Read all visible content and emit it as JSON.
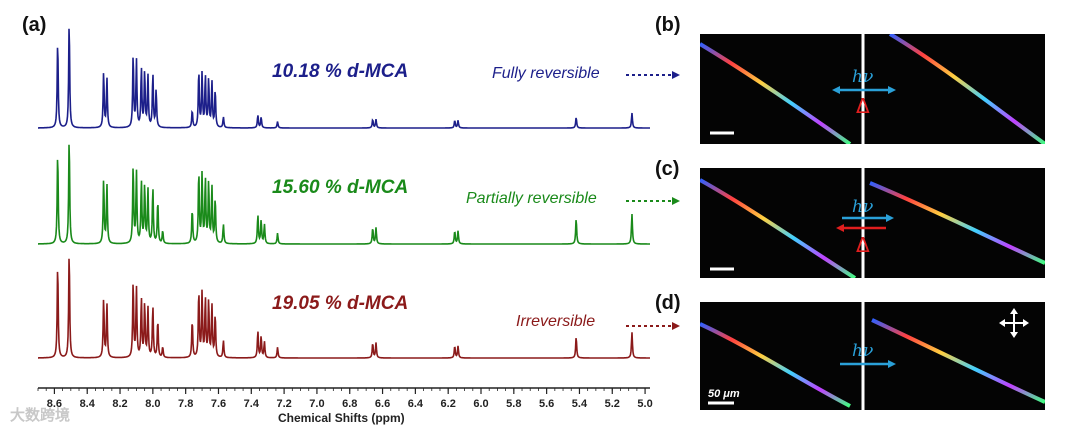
{
  "panels": {
    "a": "(a)",
    "b": "(b)",
    "c": "(c)",
    "d": "(d)"
  },
  "spectra": [
    {
      "concentration": "10.18 % d-MCA",
      "reversibility": "Fully reversible",
      "color": "#1c1f8a"
    },
    {
      "concentration": "15.60 % d-MCA",
      "reversibility": "Partially reversible",
      "color": "#1a8a1a"
    },
    {
      "concentration": "19.05 % d-MCA",
      "reversibility": "Irreversible",
      "color": "#8b1a1a"
    }
  ],
  "chart_data": {
    "type": "line",
    "xlabel": "Chemical Shifts (ppm)",
    "xlim": [
      8.7,
      4.97
    ],
    "x_reversed": true,
    "tick_labels": [
      "8.6",
      "8.4",
      "8.2",
      "8.0",
      "7.8",
      "7.6",
      "7.4",
      "7.2",
      "7.0",
      "6.8",
      "6.6",
      "6.4",
      "6.2",
      "6.0",
      "5.8",
      "5.6",
      "5.4",
      "5.2",
      "5.0"
    ],
    "ticks": [
      8.6,
      8.4,
      8.2,
      8.0,
      7.8,
      7.6,
      7.4,
      7.2,
      7.0,
      6.8,
      6.6,
      6.4,
      6.2,
      6.0,
      5.8,
      5.6,
      5.4,
      5.2,
      5.0
    ],
    "series": [
      {
        "name": "10.18 % d-MCA",
        "peaks": [
          [
            8.58,
            0.82
          ],
          [
            8.51,
            1.0
          ],
          [
            8.3,
            0.52
          ],
          [
            8.28,
            0.46
          ],
          [
            8.12,
            0.68
          ],
          [
            8.1,
            0.62
          ],
          [
            8.07,
            0.55
          ],
          [
            8.05,
            0.52
          ],
          [
            8.03,
            0.48
          ],
          [
            8.0,
            0.5
          ],
          [
            7.98,
            0.35
          ],
          [
            7.76,
            0.16
          ],
          [
            7.72,
            0.53
          ],
          [
            7.7,
            0.5
          ],
          [
            7.68,
            0.48
          ],
          [
            7.66,
            0.45
          ],
          [
            7.64,
            0.42
          ],
          [
            7.62,
            0.35
          ],
          [
            7.57,
            0.1
          ],
          [
            7.36,
            0.12
          ],
          [
            7.34,
            0.1
          ],
          [
            7.24,
            0.06
          ],
          [
            6.66,
            0.08
          ],
          [
            6.64,
            0.08
          ],
          [
            6.16,
            0.07
          ],
          [
            6.14,
            0.07
          ],
          [
            5.42,
            0.1
          ],
          [
            5.08,
            0.14
          ]
        ]
      },
      {
        "name": "15.60 % d-MCA",
        "peaks": [
          [
            8.58,
            0.86
          ],
          [
            8.51,
            1.0
          ],
          [
            8.3,
            0.6
          ],
          [
            8.28,
            0.55
          ],
          [
            8.12,
            0.73
          ],
          [
            8.1,
            0.66
          ],
          [
            8.07,
            0.58
          ],
          [
            8.05,
            0.54
          ],
          [
            8.03,
            0.5
          ],
          [
            8.0,
            0.52
          ],
          [
            7.97,
            0.4
          ],
          [
            7.94,
            0.12
          ],
          [
            7.76,
            0.32
          ],
          [
            7.72,
            0.67
          ],
          [
            7.7,
            0.64
          ],
          [
            7.68,
            0.6
          ],
          [
            7.66,
            0.57
          ],
          [
            7.64,
            0.52
          ],
          [
            7.62,
            0.42
          ],
          [
            7.57,
            0.18
          ],
          [
            7.36,
            0.27
          ],
          [
            7.34,
            0.22
          ],
          [
            7.32,
            0.18
          ],
          [
            7.24,
            0.1
          ],
          [
            6.66,
            0.15
          ],
          [
            6.64,
            0.15
          ],
          [
            6.16,
            0.12
          ],
          [
            6.14,
            0.12
          ],
          [
            5.42,
            0.24
          ],
          [
            5.08,
            0.28
          ]
        ]
      },
      {
        "name": "19.05 % d-MCA",
        "peaks": [
          [
            8.58,
            0.88
          ],
          [
            8.51,
            1.0
          ],
          [
            8.3,
            0.55
          ],
          [
            8.28,
            0.5
          ],
          [
            8.12,
            0.71
          ],
          [
            8.1,
            0.64
          ],
          [
            8.07,
            0.55
          ],
          [
            8.05,
            0.5
          ],
          [
            8.03,
            0.46
          ],
          [
            8.0,
            0.48
          ],
          [
            7.97,
            0.35
          ],
          [
            7.94,
            0.1
          ],
          [
            7.76,
            0.35
          ],
          [
            7.72,
            0.62
          ],
          [
            7.7,
            0.6
          ],
          [
            7.68,
            0.55
          ],
          [
            7.66,
            0.53
          ],
          [
            7.64,
            0.48
          ],
          [
            7.62,
            0.4
          ],
          [
            7.57,
            0.16
          ],
          [
            7.36,
            0.25
          ],
          [
            7.34,
            0.2
          ],
          [
            7.32,
            0.15
          ],
          [
            7.24,
            0.1
          ],
          [
            6.66,
            0.14
          ],
          [
            6.64,
            0.14
          ],
          [
            6.16,
            0.11
          ],
          [
            6.14,
            0.11
          ],
          [
            5.42,
            0.2
          ],
          [
            5.08,
            0.24
          ]
        ]
      }
    ]
  },
  "micrographs": {
    "b": {
      "symbol": "hν",
      "heat": "Δ"
    },
    "c": {
      "symbol": "hν",
      "heat": "Δ"
    },
    "d": {
      "symbol": "hν",
      "scale_bar": "50 μm"
    }
  },
  "colors": {
    "arrow": "#2aa0d8",
    "heat": "#e01e1e"
  },
  "watermark": "大数跨境"
}
